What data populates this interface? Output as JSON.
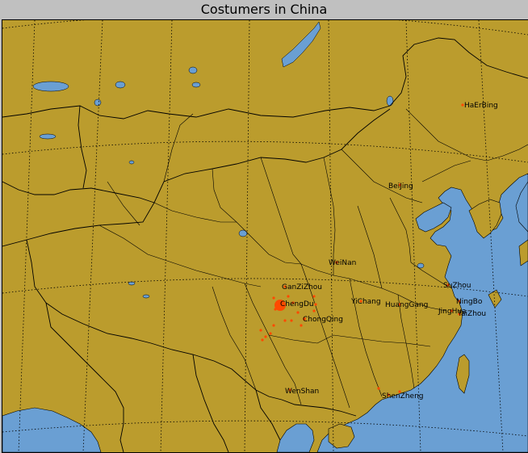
{
  "title": "Costumers in China",
  "colors": {
    "land": "#bb9c2d",
    "water": "#6a9fd3",
    "border": "#000000",
    "marker": "#ff4a00",
    "frame_bg": "#c0c0c0"
  },
  "cities": [
    {
      "name": "HaErBing",
      "size": 2
    },
    {
      "name": "BeiJing",
      "size": 2
    },
    {
      "name": "WeiNan",
      "size": 2
    },
    {
      "name": "GanZiZhou",
      "size": 3
    },
    {
      "name": "ChengDu",
      "size": 14
    },
    {
      "name": "ChongQing",
      "size": 4
    },
    {
      "name": "YiChang",
      "size": 2
    },
    {
      "name": "HuangGang",
      "size": 2
    },
    {
      "name": "SuZhou",
      "size": 2
    },
    {
      "name": "NingBo",
      "size": 2
    },
    {
      "name": "JingHua",
      "size": 2
    },
    {
      "name": "TaiZhou",
      "size": 2
    },
    {
      "name": "WenShan",
      "size": 2
    },
    {
      "name": "ShenZheng",
      "size": 3
    }
  ]
}
